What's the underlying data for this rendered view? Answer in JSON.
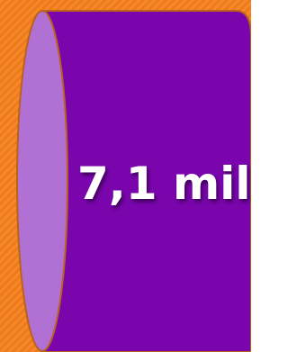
{
  "label": "7,1 mil"
}
